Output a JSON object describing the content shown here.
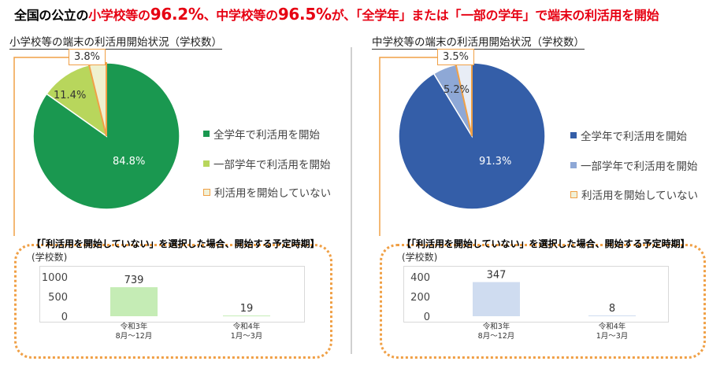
{
  "headline": {
    "p1": "全国の公立の",
    "p2": "小学校等の",
    "p3": "96.2%",
    "p4": "、中学校等の",
    "p5": "96.5%",
    "p6": "が、",
    "p7": "「全学年」または「一部の学年」で端末の利活用を開始"
  },
  "legend": {
    "all": "全学年で利活用を開始",
    "some": "一部学年で利活用を開始",
    "none": "利活用を開始していない"
  },
  "colors": {
    "orange": "#f0a046",
    "elem_all": "#1a9850",
    "elem_some": "#b8d65c",
    "elem_none": "#eff1cf",
    "jh_all": "#345ea8",
    "jh_some": "#8ea8d6",
    "jh_none": "#e8edf6",
    "elem_bar": "#c5ecb5",
    "jh_bar": "#cfdcf0"
  },
  "elementary": {
    "title": "小学校等の端末の利活用開始状況（学校数）",
    "label_all": "84.8%",
    "label_some": "11.4%",
    "label_none": "3.8%",
    "sub_title": "【「利活用を開始していない」を選択した場合、開始する予定時期】",
    "sub_unit": "(学校数)",
    "bar_val_1": "739",
    "bar_val_2": "19",
    "tick_0": "0",
    "tick_1": "500",
    "tick_2": "1000",
    "cat_1_line1": "令和3年",
    "cat_1_line2": "8月～12月",
    "cat_2_line1": "令和4年",
    "cat_2_line2": "1月～3月"
  },
  "juniorhigh": {
    "title": "中学校等の端末の利活用開始状況（学校数）",
    "label_all": "91.3%",
    "label_some": "5.2%",
    "label_none": "3.5%",
    "sub_title": "【「利活用を開始していない」を選択した場合、開始する予定時期】",
    "sub_unit": "(学校数)",
    "bar_val_1": "347",
    "bar_val_2": "8",
    "tick_0": "0",
    "tick_1": "200",
    "tick_2": "400",
    "cat_1_line1": "令和3年",
    "cat_1_line2": "8月～12月",
    "cat_2_line1": "令和4年",
    "cat_2_line2": "1月～3月"
  },
  "chart_data": [
    {
      "type": "pie",
      "title": "小学校等の端末の利活用開始状況（学校数）",
      "categories": [
        "全学年で利活用を開始",
        "一部学年で利活用を開始",
        "利活用を開始していない"
      ],
      "values": [
        84.8,
        11.4,
        3.8
      ],
      "legend": "right"
    },
    {
      "type": "bar",
      "title": "【「利活用を開始していない」を選択した場合、開始する予定時期】",
      "ylabel": "(学校数)",
      "categories": [
        "令和3年 8月～12月",
        "令和4年 1月～3月"
      ],
      "values": [
        739,
        19
      ],
      "ylim": [
        0,
        1000
      ],
      "yticks": [
        0,
        500,
        1000
      ]
    },
    {
      "type": "pie",
      "title": "中学校等の端末の利活用開始状況（学校数）",
      "categories": [
        "全学年で利活用を開始",
        "一部学年で利活用を開始",
        "利活用を開始していない"
      ],
      "values": [
        91.3,
        5.2,
        3.5
      ],
      "legend": "right"
    },
    {
      "type": "bar",
      "title": "【「利活用を開始していない」を選択した場合、開始する予定時期】",
      "ylabel": "(学校数)",
      "categories": [
        "令和3年 8月～12月",
        "令和4年 1月～3月"
      ],
      "values": [
        347,
        8
      ],
      "ylim": [
        0,
        400
      ],
      "yticks": [
        0,
        200,
        400
      ]
    }
  ]
}
